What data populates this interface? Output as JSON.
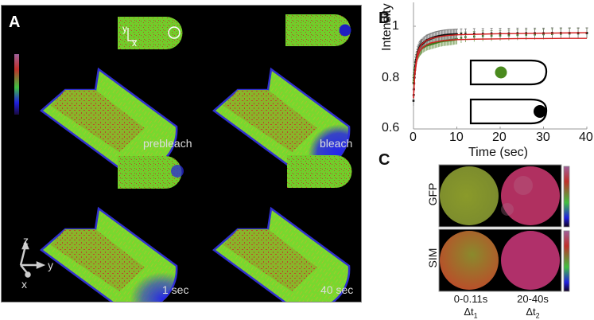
{
  "figure": {
    "panels": {
      "A": {
        "letter": "A",
        "labels": [
          "prebleach",
          "bleach",
          "1 sec",
          "40 sec"
        ],
        "inset_axes": {
          "y": "y",
          "x": "x"
        },
        "axes_3d": {
          "z": "z",
          "y": "y",
          "x": "x"
        },
        "colorbar": [
          "#1a0a40",
          "#2020e0",
          "#40c040",
          "#c0302a",
          "#a0609a"
        ]
      },
      "B": {
        "letter": "B",
        "inset_legend": [
          {
            "shape": "capsule",
            "dot_color": "#4a8a1e",
            "dot_position": "center"
          },
          {
            "shape": "capsule",
            "dot_color": "#000000",
            "dot_position": "tip"
          }
        ]
      },
      "C": {
        "letter": "C",
        "row_labels": [
          "GFP",
          "SIM"
        ],
        "col_labels": [
          "0-0.11s",
          "20-40s"
        ],
        "col_sublabels": [
          {
            "base": "Δt",
            "sub": "1"
          },
          {
            "base": "Δt",
            "sub": "2"
          }
        ],
        "colorbar": [
          "#100020",
          "#2020e0",
          "#40c040",
          "#c0302a",
          "#a0609a"
        ]
      }
    }
  },
  "chart_data": {
    "type": "line",
    "title": "",
    "xlabel": "Time (sec)",
    "ylabel": "Intensity",
    "xlim": [
      0,
      40
    ],
    "ylim": [
      0.6,
      1.08
    ],
    "xticks": [
      0,
      10,
      20,
      30,
      40
    ],
    "yticks": [
      0.6,
      0.8,
      1
    ],
    "ytick_labels": [
      "0.6",
      "0.8",
      "1"
    ],
    "grid": false,
    "series": [
      {
        "name": "center bleach (green)",
        "color": "#3a7a1a",
        "x": [
          0,
          0.2,
          0.5,
          1,
          1.5,
          2,
          3,
          4,
          5,
          6,
          7,
          8,
          9,
          10,
          11,
          12,
          14,
          16,
          18,
          20,
          22,
          24,
          26,
          28,
          30,
          32,
          34,
          36,
          38,
          40
        ],
        "y": [
          0.78,
          0.82,
          0.86,
          0.89,
          0.905,
          0.915,
          0.925,
          0.93,
          0.935,
          0.94,
          0.943,
          0.945,
          0.947,
          0.95,
          0.955,
          0.958,
          0.96,
          0.962,
          0.963,
          0.964,
          0.965,
          0.966,
          0.967,
          0.968,
          0.969,
          0.97,
          0.971,
          0.972,
          0.972,
          0.973
        ]
      },
      {
        "name": "tip bleach (black)",
        "color": "#111111",
        "x": [
          0,
          0.2,
          0.5,
          1,
          1.5,
          2,
          3,
          4,
          5,
          6,
          7,
          8,
          9,
          10,
          11,
          12,
          14,
          16,
          18,
          20,
          22,
          24,
          26,
          28,
          30,
          32,
          34,
          36,
          38,
          40
        ],
        "y": [
          0.71,
          0.8,
          0.86,
          0.9,
          0.92,
          0.93,
          0.945,
          0.952,
          0.958,
          0.962,
          0.965,
          0.967,
          0.968,
          0.969,
          0.97,
          0.97,
          0.971,
          0.971,
          0.972,
          0.972,
          0.972,
          0.973,
          0.973,
          0.973,
          0.973,
          0.974,
          0.974,
          0.974,
          0.974,
          0.974
        ]
      },
      {
        "name": "fit (upper)",
        "color": "#d42020",
        "style": "line",
        "x": [
          0,
          0.3,
          0.7,
          1,
          1.5,
          2,
          3,
          4,
          6,
          8,
          10,
          15,
          20,
          25,
          30,
          35,
          40
        ],
        "y": [
          0.72,
          0.82,
          0.875,
          0.9,
          0.92,
          0.932,
          0.945,
          0.952,
          0.96,
          0.964,
          0.967,
          0.969,
          0.971,
          0.972,
          0.973,
          0.974,
          0.975
        ]
      },
      {
        "name": "fit (lower)",
        "color": "#d42020",
        "style": "line",
        "x": [
          0,
          0.3,
          0.7,
          1,
          1.5,
          2,
          3,
          4,
          6,
          8,
          10,
          15,
          20,
          25,
          30,
          35,
          40
        ],
        "y": [
          0.72,
          0.81,
          0.86,
          0.885,
          0.905,
          0.915,
          0.928,
          0.935,
          0.942,
          0.946,
          0.948,
          0.95,
          0.951,
          0.952,
          0.952,
          0.953,
          0.953
        ]
      }
    ],
    "error_bar_halfwidth": 0.02
  }
}
